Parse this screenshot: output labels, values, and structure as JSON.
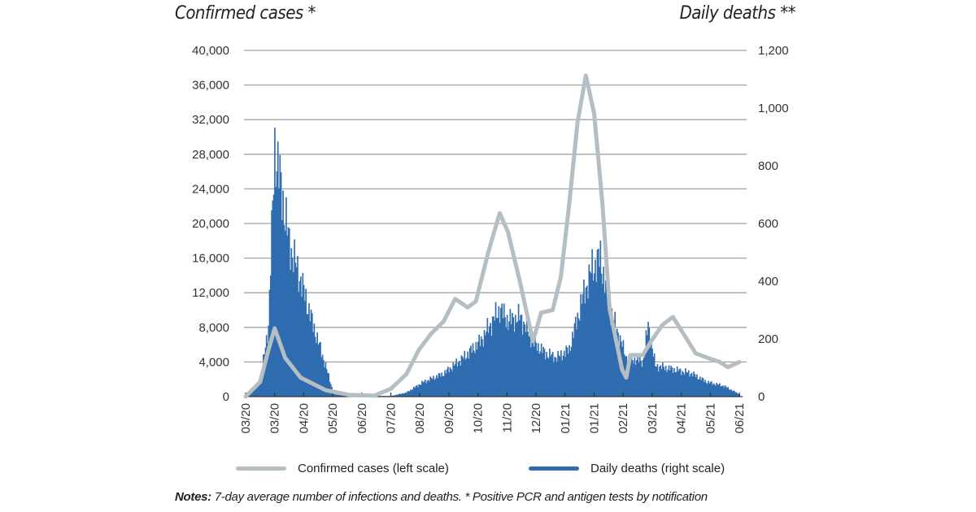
{
  "colors": {
    "cases": "#b5bec2",
    "deaths": "#2f6cb0",
    "grid": "#a3a3a3"
  },
  "chart_data": {
    "type": "line+bar",
    "left_title": "Confirmed cases *",
    "right_title": "Daily deaths **",
    "left_ylim": [
      0,
      40000
    ],
    "right_ylim": [
      0,
      1200
    ],
    "left_ticks": [
      "0",
      "4,000",
      "8,000",
      "12,000",
      "16,000",
      "20,000",
      "24,000",
      "28,000",
      "32,000",
      "36,000",
      "40,000"
    ],
    "right_ticks": [
      "0",
      "200",
      "400",
      "600",
      "800",
      "1,000",
      "1,200"
    ],
    "x_range": [
      "2020-03-01",
      "2021-06-20"
    ],
    "x_ticks": [
      "03/20",
      "03/20",
      "04/20",
      "05/20",
      "06/20",
      "07/20",
      "08/20",
      "09/20",
      "10/20",
      "11/20",
      "12/20",
      "01/21",
      "01/21",
      "02/21",
      "03/21",
      "04/21",
      "05/21",
      "06/21"
    ],
    "grid": "horizontal",
    "legend_position": "bottom",
    "series": [
      {
        "name": "Confirmed cases (left scale)",
        "type": "line",
        "axis": "left",
        "points": [
          [
            "2020-03-01",
            0
          ],
          [
            "2020-03-15",
            1700
          ],
          [
            "2020-03-23",
            5400
          ],
          [
            "2020-03-29",
            7900
          ],
          [
            "2020-04-08",
            4500
          ],
          [
            "2020-04-23",
            2200
          ],
          [
            "2020-05-17",
            750
          ],
          [
            "2020-06-09",
            200
          ],
          [
            "2020-07-03",
            100
          ],
          [
            "2020-07-19",
            900
          ],
          [
            "2020-08-03",
            2600
          ],
          [
            "2020-08-15",
            5400
          ],
          [
            "2020-08-27",
            7300
          ],
          [
            "2020-09-08",
            8700
          ],
          [
            "2020-09-19",
            11300
          ],
          [
            "2020-10-01",
            10300
          ],
          [
            "2020-10-09",
            11000
          ],
          [
            "2020-10-21",
            16700
          ],
          [
            "2020-11-01",
            21200
          ],
          [
            "2020-11-09",
            19000
          ],
          [
            "2020-11-21",
            13000
          ],
          [
            "2020-12-03",
            6400
          ],
          [
            "2020-12-11",
            9700
          ],
          [
            "2020-12-22",
            10000
          ],
          [
            "2020-12-30",
            13900
          ],
          [
            "2021-01-07",
            22300
          ],
          [
            "2021-01-15",
            31700
          ],
          [
            "2021-01-23",
            37100
          ],
          [
            "2021-01-31",
            32700
          ],
          [
            "2021-02-08",
            22300
          ],
          [
            "2021-02-15",
            10100
          ],
          [
            "2021-02-27",
            3100
          ],
          [
            "2021-03-03",
            2200
          ],
          [
            "2021-03-07",
            4800
          ],
          [
            "2021-03-19",
            4800
          ],
          [
            "2021-03-27",
            6400
          ],
          [
            "2021-04-07",
            8300
          ],
          [
            "2021-04-17",
            9200
          ],
          [
            "2021-04-27",
            7300
          ],
          [
            "2021-05-09",
            5000
          ],
          [
            "2021-05-20",
            4500
          ],
          [
            "2021-06-01",
            4000
          ],
          [
            "2021-06-09",
            3400
          ],
          [
            "2021-06-20",
            4000
          ]
        ]
      },
      {
        "name": "Daily deaths (right scale)",
        "type": "bar",
        "axis": "right",
        "points": [
          [
            "2020-03-01",
            0
          ],
          [
            "2020-03-15",
            50
          ],
          [
            "2020-03-23",
            248
          ],
          [
            "2020-03-29",
            868
          ],
          [
            "2020-04-04",
            727
          ],
          [
            "2020-04-12",
            530
          ],
          [
            "2020-04-23",
            403
          ],
          [
            "2020-05-05",
            248
          ],
          [
            "2020-05-17",
            107
          ],
          [
            "2020-05-25",
            8
          ],
          [
            "2020-06-09",
            2
          ],
          [
            "2020-07-19",
            2
          ],
          [
            "2020-08-03",
            14
          ],
          [
            "2020-08-19",
            50
          ],
          [
            "2020-09-08",
            80
          ],
          [
            "2020-09-27",
            135
          ],
          [
            "2020-10-13",
            190
          ],
          [
            "2020-10-25",
            262
          ],
          [
            "2020-11-01",
            304
          ],
          [
            "2020-11-09",
            262
          ],
          [
            "2020-11-21",
            276
          ],
          [
            "2020-12-03",
            190
          ],
          [
            "2020-12-15",
            150
          ],
          [
            "2020-12-26",
            135
          ],
          [
            "2021-01-07",
            163
          ],
          [
            "2021-01-19",
            332
          ],
          [
            "2021-01-29",
            445
          ],
          [
            "2021-02-06",
            480
          ],
          [
            "2021-02-15",
            304
          ],
          [
            "2021-02-23",
            220
          ],
          [
            "2021-03-03",
            135
          ],
          [
            "2021-03-19",
            121
          ],
          [
            "2021-03-24",
            248
          ],
          [
            "2021-03-31",
            107
          ],
          [
            "2021-04-19",
            93
          ],
          [
            "2021-05-05",
            80
          ],
          [
            "2021-05-20",
            50
          ],
          [
            "2021-06-05",
            37
          ],
          [
            "2021-06-20",
            8
          ]
        ]
      }
    ]
  },
  "notes": {
    "label": "Notes:",
    "text": " 7-day average number of infections and deaths. * Positive PCR and antigen tests by notification"
  }
}
